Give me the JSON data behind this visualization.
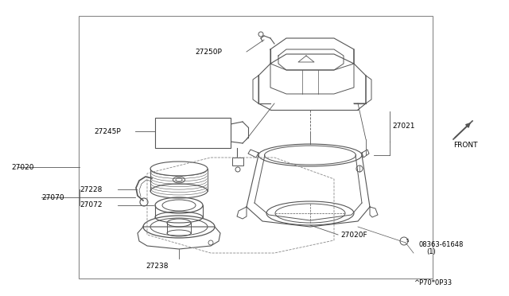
{
  "bg_color": "#ffffff",
  "lc": "#555555",
  "border": [
    0.155,
    0.055,
    0.695,
    0.885
  ],
  "figsize": [
    6.4,
    3.72
  ],
  "dpi": 100
}
